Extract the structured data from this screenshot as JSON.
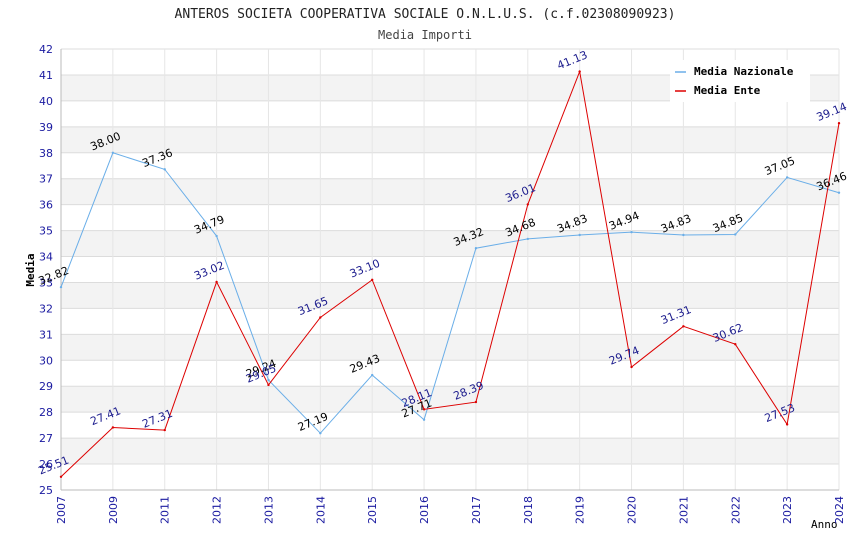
{
  "chart_data": {
    "type": "line",
    "title": "ANTEROS SOCIETA COOPERATIVA SOCIALE O.N.L.U.S. (c.f.02308090923)",
    "subtitle": "Media Importi",
    "xlabel": "Anno",
    "ylabel": "Media",
    "ylim": [
      25,
      42
    ],
    "yticks": [
      "25",
      "26",
      "27",
      "28",
      "29",
      "30",
      "31",
      "32",
      "33",
      "34",
      "35",
      "36",
      "37",
      "38",
      "39",
      "40",
      "41",
      "42"
    ],
    "categories": [
      "2007",
      "2009",
      "2011",
      "2012",
      "2013",
      "2014",
      "2015",
      "2016",
      "2017",
      "2018",
      "2019",
      "2020",
      "2021",
      "2022",
      "2023",
      "2024"
    ],
    "grid": true,
    "legend_position": "top-right",
    "series": [
      {
        "name": "Media Nazionale",
        "color": "#6aaee8",
        "label_color": "#000000",
        "values": [
          32.82,
          38.0,
          37.36,
          34.79,
          29.24,
          27.19,
          29.43,
          27.71,
          34.32,
          34.68,
          34.83,
          34.94,
          34.83,
          34.85,
          37.05,
          36.46
        ],
        "labels": [
          "32.82",
          "38.00",
          "37.36",
          "34.79",
          "29.24",
          "27.19",
          "29.43",
          "27.71",
          "34.32",
          "34.68",
          "34.83",
          "34.94",
          "34.83",
          "34.85",
          "37.05",
          "36.46"
        ]
      },
      {
        "name": "Media Ente",
        "color": "#dd0000",
        "label_color": "#1a1a8c",
        "values": [
          25.51,
          27.41,
          27.31,
          33.02,
          29.05,
          31.65,
          33.1,
          28.11,
          28.39,
          36.01,
          41.13,
          29.74,
          31.31,
          30.62,
          27.53,
          39.14
        ],
        "labels": [
          "25.51",
          "27.41",
          "27.31",
          "33.02",
          "29.05",
          "31.65",
          "33.10",
          "28.11",
          "28.39",
          "36.01",
          "41.13",
          "29.74",
          "31.31",
          "30.62",
          "27.53",
          "39.14"
        ]
      }
    ]
  }
}
